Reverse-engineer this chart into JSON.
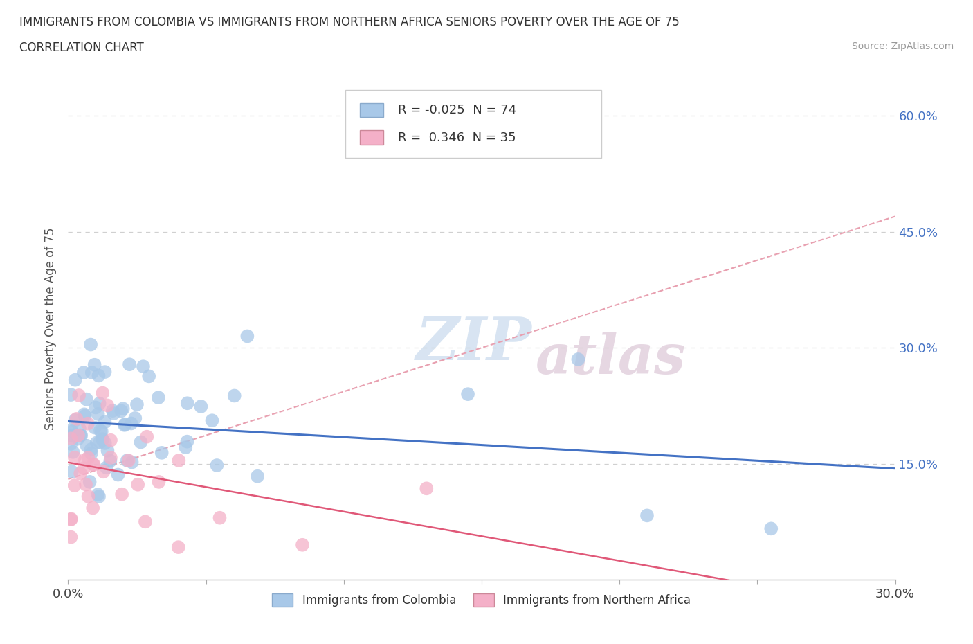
{
  "title": "IMMIGRANTS FROM COLOMBIA VS IMMIGRANTS FROM NORTHERN AFRICA SENIORS POVERTY OVER THE AGE OF 75",
  "subtitle": "CORRELATION CHART",
  "source": "Source: ZipAtlas.com",
  "ylabel": "Seniors Poverty Over the Age of 75",
  "xlim": [
    0.0,
    0.3
  ],
  "ylim": [
    0.0,
    0.65
  ],
  "yticks": [
    0.0,
    0.15,
    0.3,
    0.45,
    0.6
  ],
  "ytick_labels_right": [
    "",
    "15.0%",
    "30.0%",
    "45.0%",
    "60.0%"
  ],
  "xticks": [
    0.0,
    0.05,
    0.1,
    0.15,
    0.2,
    0.25,
    0.3
  ],
  "xtick_labels": [
    "0.0%",
    "",
    "",
    "",
    "",
    "",
    "30.0%"
  ],
  "colombia_color": "#a8c8e8",
  "northern_africa_color": "#f4b0c8",
  "colombia_line_color": "#4472c4",
  "northern_africa_line_color": "#e05878",
  "trend_line_color": "#e8a0b0",
  "R_colombia": -0.025,
  "N_colombia": 74,
  "R_northern_africa": 0.346,
  "N_northern_africa": 35,
  "legend_label_colombia": "Immigrants from Colombia",
  "legend_label_northern_africa": "Immigrants from Northern Africa",
  "watermark_zip": "ZIP",
  "watermark_atlas": "atlas",
  "background_color": "#ffffff",
  "grid_color": "#d0d0d0",
  "right_tick_color": "#4472c4"
}
